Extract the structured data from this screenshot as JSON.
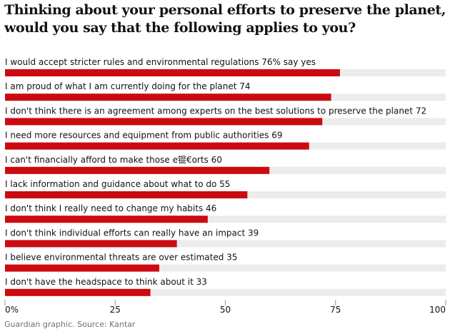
{
  "title": "Thinking about your personal efforts to preserve the planet, would you say that the following applies to you?",
  "source": "Guardian graphic. Source: Kantar",
  "colors": {
    "bar": "#cc0a11",
    "track": "#ececec",
    "text": "#121212",
    "muted": "#707070"
  },
  "chart_data": {
    "type": "bar",
    "orientation": "horizontal",
    "xlim": [
      0,
      100
    ],
    "x_ticks": [
      "0%",
      "25",
      "50",
      "75",
      "100"
    ],
    "tick_values": [
      0,
      25,
      50,
      75,
      100
    ],
    "grid": false,
    "bars": [
      {
        "label": "I would accept stricter rules and environmental regulations",
        "value": 76,
        "value_text": "76% say yes"
      },
      {
        "label": "I am proud of what I am currently doing for the planet",
        "value": 74,
        "value_text": "74"
      },
      {
        "label": "I don't think there is an agreement among experts on the best solutions to preserve the planet",
        "value": 72,
        "value_text": "72"
      },
      {
        "label": "I need more resources and equipment from public authorities",
        "value": 69,
        "value_text": "69"
      },
      {
        "label": "I can't financially afford to make those e锟€orts",
        "value": 60,
        "value_text": "60"
      },
      {
        "label": "I lack information and guidance about what to do",
        "value": 55,
        "value_text": "55"
      },
      {
        "label": "I don't think I really need to change my habits",
        "value": 46,
        "value_text": "46"
      },
      {
        "label": "I don't think individual efforts can really have an impact",
        "value": 39,
        "value_text": "39"
      },
      {
        "label": "I believe environmental threats are over estimated",
        "value": 35,
        "value_text": "35"
      },
      {
        "label": "I don't have the headspace to think about it",
        "value": 33,
        "value_text": "33"
      }
    ]
  }
}
